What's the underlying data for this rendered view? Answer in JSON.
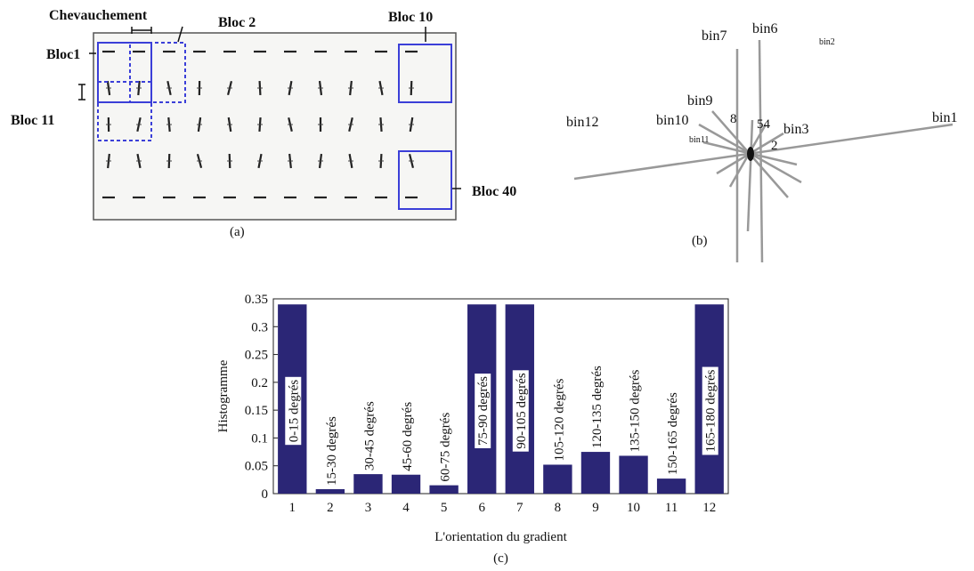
{
  "panel_a": {
    "overlap": "Chevauchement",
    "block2": "Bloc 2",
    "block10": "Bloc 10",
    "block1": "Bloc1",
    "block11": "Bloc 11",
    "block40": "Bloc 40",
    "caption": "(a)"
  },
  "panel_b": {
    "bin1": "bin1",
    "bin2": "bin2",
    "bin3": "bin3",
    "bin6": "bin6",
    "bin7": "bin7",
    "bin9": "bin9",
    "bin10": "bin10",
    "bin11": "bin11",
    "bin12": "bin12",
    "n8": "8",
    "n54": "54",
    "n2": "2",
    "caption": "(b)"
  },
  "chart_data": {
    "type": "bar",
    "ylabel": "Histogramme",
    "xlabel": "L'orientation du gradient",
    "caption": "(c)",
    "categories": [
      "1",
      "2",
      "3",
      "4",
      "5",
      "6",
      "7",
      "8",
      "9",
      "10",
      "11",
      "12"
    ],
    "values": [
      0.34,
      0.008,
      0.035,
      0.034,
      0.015,
      0.34,
      0.34,
      0.052,
      0.075,
      0.068,
      0.027,
      0.34
    ],
    "bar_labels": [
      "0-15 degrés",
      "15-30 degrés",
      "30-45 degrés",
      "45-60 degrés",
      "60-75 degrés",
      "75-90 degrés",
      "90-105 degrés",
      "105-120 degrés",
      "120-135 degrés",
      "135-150 degrés",
      "150-165 degrés",
      "165-180 degrés"
    ],
    "color": "#2b2676",
    "ylim": [
      0,
      0.35
    ],
    "yticks": [
      0,
      0.05,
      0.1,
      0.15,
      0.2,
      0.25,
      0.3,
      0.35
    ]
  }
}
